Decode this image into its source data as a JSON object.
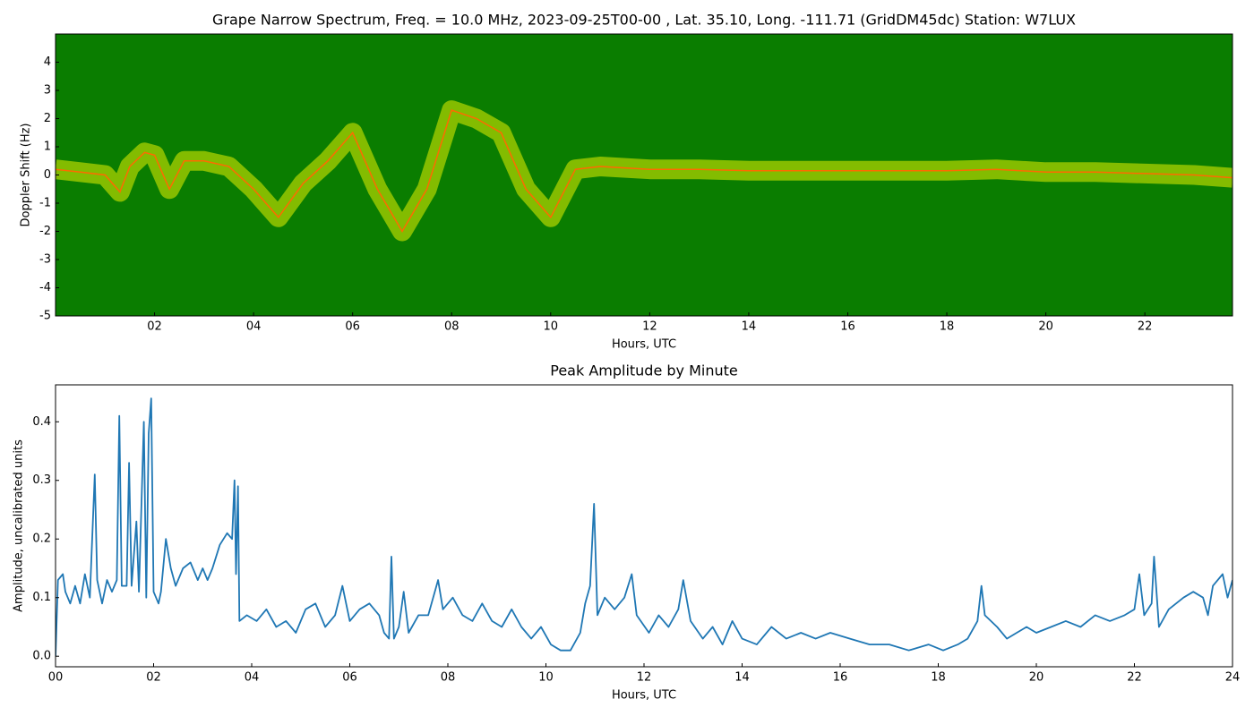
{
  "chart_data": [
    {
      "type": "spectrogram",
      "title": "Grape Narrow Spectrum, Freq. = 10.0 MHz, 2023-09-25T00-00 , Lat.  35.10, Long. -111.71 (GridDM45dc) Station: W7LUX",
      "x_label": "Hours, UTC",
      "y_label": "Doppler Shift (Hz)",
      "background": "#0a7d00",
      "glow_color": "#e8f000",
      "color": "#ff6a00",
      "x": [
        0,
        0.5,
        1,
        1.3,
        1.5,
        1.8,
        2,
        2.3,
        2.6,
        3,
        3.5,
        4,
        4.5,
        5,
        5.5,
        6,
        6.5,
        7,
        7.5,
        8,
        8.5,
        9,
        9.5,
        10,
        10.5,
        11,
        12,
        13,
        14,
        15,
        16,
        17,
        18,
        19,
        20,
        21,
        22,
        23,
        23.77
      ],
      "values": [
        0.2,
        0.1,
        0,
        -0.6,
        0.3,
        0.8,
        0.7,
        -0.5,
        0.5,
        0.5,
        0.3,
        -0.5,
        -1.5,
        -0.3,
        0.5,
        1.5,
        -0.5,
        -2.0,
        -0.5,
        2.3,
        2,
        1.5,
        -0.5,
        -1.5,
        0.2,
        0.3,
        0.2,
        0.2,
        0.15,
        0.15,
        0.15,
        0.15,
        0.15,
        0.2,
        0.1,
        0.1,
        0.05,
        0.0,
        -0.1
      ],
      "xlim": [
        0,
        23.77
      ],
      "ylim": [
        -5,
        5
      ],
      "xticks": [
        {
          "value": 2,
          "label": "02"
        },
        {
          "value": 4,
          "label": "04"
        },
        {
          "value": 6,
          "label": "06"
        },
        {
          "value": 8,
          "label": "08"
        },
        {
          "value": 10,
          "label": "10"
        },
        {
          "value": 12,
          "label": "12"
        },
        {
          "value": 14,
          "label": "14"
        },
        {
          "value": 16,
          "label": "16"
        },
        {
          "value": 18,
          "label": "18"
        },
        {
          "value": 20,
          "label": "20"
        },
        {
          "value": 22,
          "label": "22"
        }
      ],
      "yticks": [
        -5,
        -4,
        -3,
        -2,
        -1,
        0,
        1,
        2,
        3,
        4
      ]
    },
    {
      "type": "line",
      "title": "Peak Amplitude by Minute",
      "x_label": "Hours, UTC",
      "y_label": "Amplitude, uncalibrated units",
      "color": "#1f77b4",
      "x": [
        0,
        0.05,
        0.15,
        0.2,
        0.3,
        0.4,
        0.5,
        0.6,
        0.7,
        0.8,
        0.85,
        0.95,
        1.05,
        1.15,
        1.25,
        1.3,
        1.35,
        1.45,
        1.5,
        1.55,
        1.65,
        1.7,
        1.8,
        1.85,
        1.9,
        1.95,
        2,
        2.1,
        2.15,
        2.25,
        2.35,
        2.45,
        2.6,
        2.75,
        2.9,
        3,
        3.1,
        3.2,
        3.35,
        3.5,
        3.6,
        3.65,
        3.68,
        3.72,
        3.75,
        3.9,
        4.1,
        4.3,
        4.5,
        4.7,
        4.9,
        5.1,
        5.3,
        5.5,
        5.7,
        5.85,
        6,
        6.2,
        6.4,
        6.6,
        6.7,
        6.8,
        6.85,
        6.9,
        7,
        7.1,
        7.2,
        7.4,
        7.6,
        7.8,
        7.9,
        8.1,
        8.3,
        8.5,
        8.7,
        8.9,
        9.1,
        9.3,
        9.5,
        9.7,
        9.9,
        10.1,
        10.3,
        10.5,
        10.7,
        10.8,
        10.9,
        10.98,
        11.05,
        11.2,
        11.4,
        11.6,
        11.75,
        11.85,
        12.1,
        12.3,
        12.5,
        12.7,
        12.8,
        12.95,
        13.2,
        13.4,
        13.6,
        13.8,
        14,
        14.3,
        14.6,
        14.9,
        15.2,
        15.5,
        15.8,
        16.2,
        16.6,
        17,
        17.4,
        17.8,
        18.1,
        18.4,
        18.6,
        18.8,
        18.88,
        18.95,
        19.2,
        19.4,
        19.6,
        19.8,
        20,
        20.3,
        20.6,
        20.9,
        21.2,
        21.5,
        21.8,
        22,
        22.1,
        22.2,
        22.35,
        22.4,
        22.5,
        22.7,
        23,
        23.2,
        23.4,
        23.5,
        23.6,
        23.8,
        23.9,
        24
      ],
      "values": [
        0,
        0.13,
        0.14,
        0.11,
        0.09,
        0.12,
        0.09,
        0.14,
        0.1,
        0.31,
        0.13,
        0.09,
        0.13,
        0.11,
        0.13,
        0.41,
        0.12,
        0.12,
        0.33,
        0.12,
        0.23,
        0.11,
        0.4,
        0.1,
        0.38,
        0.44,
        0.11,
        0.09,
        0.11,
        0.2,
        0.15,
        0.12,
        0.15,
        0.16,
        0.13,
        0.15,
        0.13,
        0.15,
        0.19,
        0.21,
        0.2,
        0.3,
        0.14,
        0.29,
        0.06,
        0.07,
        0.06,
        0.08,
        0.05,
        0.06,
        0.04,
        0.08,
        0.09,
        0.05,
        0.07,
        0.12,
        0.06,
        0.08,
        0.09,
        0.07,
        0.04,
        0.03,
        0.17,
        0.03,
        0.05,
        0.11,
        0.04,
        0.07,
        0.07,
        0.13,
        0.08,
        0.1,
        0.07,
        0.06,
        0.09,
        0.06,
        0.05,
        0.08,
        0.05,
        0.03,
        0.05,
        0.02,
        0.01,
        0.01,
        0.04,
        0.09,
        0.12,
        0.26,
        0.07,
        0.1,
        0.08,
        0.1,
        0.14,
        0.07,
        0.04,
        0.07,
        0.05,
        0.08,
        0.13,
        0.06,
        0.03,
        0.05,
        0.02,
        0.06,
        0.03,
        0.02,
        0.05,
        0.03,
        0.04,
        0.03,
        0.04,
        0.03,
        0.02,
        0.02,
        0.01,
        0.02,
        0.01,
        0.02,
        0.03,
        0.06,
        0.12,
        0.07,
        0.05,
        0.03,
        0.04,
        0.05,
        0.04,
        0.05,
        0.06,
        0.05,
        0.07,
        0.06,
        0.07,
        0.08,
        0.14,
        0.07,
        0.09,
        0.17,
        0.05,
        0.08,
        0.1,
        0.11,
        0.1,
        0.07,
        0.12,
        0.14,
        0.1,
        0.13
      ],
      "xlim": [
        0,
        24
      ],
      "ylim": [
        -0.018,
        0.463
      ],
      "xticks": [
        {
          "value": 0,
          "label": "00"
        },
        {
          "value": 2,
          "label": "02"
        },
        {
          "value": 4,
          "label": "04"
        },
        {
          "value": 6,
          "label": "06"
        },
        {
          "value": 8,
          "label": "08"
        },
        {
          "value": 10,
          "label": "10"
        },
        {
          "value": 12,
          "label": "12"
        },
        {
          "value": 14,
          "label": "14"
        },
        {
          "value": 16,
          "label": "16"
        },
        {
          "value": 18,
          "label": "18"
        },
        {
          "value": 20,
          "label": "20"
        },
        {
          "value": 22,
          "label": "22"
        },
        {
          "value": 24,
          "label": "24"
        }
      ],
      "yticks": [
        {
          "value": 0,
          "label": "0.0"
        },
        0.1,
        0.2,
        0.3,
        0.4
      ]
    }
  ]
}
